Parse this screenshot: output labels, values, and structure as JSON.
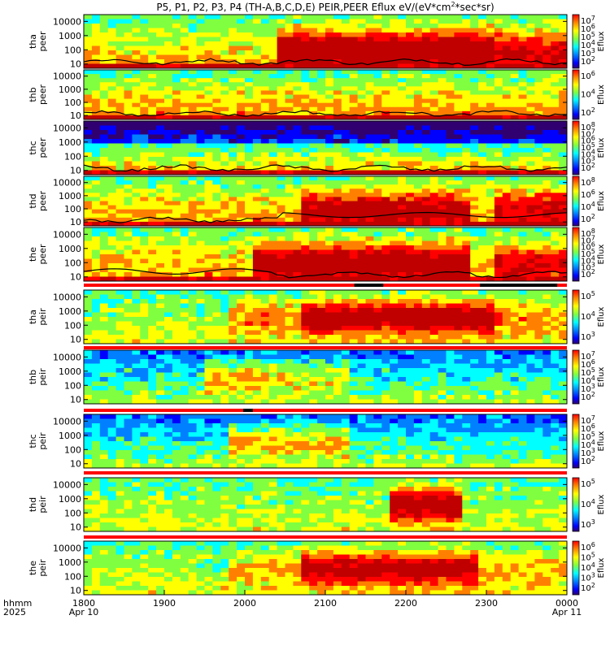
{
  "title": "P5, P1, P2, P3, P4 (TH-A,B,C,D,E) PEIR,PEER Eflux eV/(eV*cm",
  "title_sup": "2",
  "title_tail": "*sec*sr)",
  "bottom_axis": {
    "label_line1": "hhmm",
    "label_line2": "2025",
    "ticks": [
      "1800",
      "1900",
      "2000",
      "2100",
      "2200",
      "2300",
      "0000"
    ],
    "date_start": "Apr 10",
    "date_end": "Apr 11"
  },
  "y_ticks": [
    "10000",
    "1000",
    "100",
    "10"
  ],
  "colorbar_label": "Eflux",
  "chart_data": [
    {
      "type": "heatmap",
      "probe": "tha",
      "species": "peer",
      "ylabel": "tha\npeer",
      "y_scale": "log",
      "ylim": [
        5,
        30000
      ],
      "colorbar_ticks": [
        "10^7",
        "10^6",
        "10^5",
        "10^4",
        "10^3",
        "10^2"
      ],
      "has_overlay_line": true
    },
    {
      "type": "heatmap",
      "probe": "thb",
      "species": "peer",
      "ylabel": "thb\npeer",
      "y_scale": "log",
      "ylim": [
        5,
        30000
      ],
      "colorbar_ticks": [
        "10^6",
        "10^4",
        "10^2"
      ],
      "has_overlay_line": true
    },
    {
      "type": "heatmap",
      "probe": "thc",
      "species": "peer",
      "ylabel": "thc\npeer",
      "y_scale": "log",
      "ylim": [
        5,
        30000
      ],
      "colorbar_ticks": [
        "10^8",
        "10^7",
        "10^6",
        "10^5",
        "10^4",
        "10^3",
        "10^2"
      ],
      "has_overlay_line": true
    },
    {
      "type": "heatmap",
      "probe": "thd",
      "species": "peer",
      "ylabel": "thd\npeer",
      "y_scale": "log",
      "ylim": [
        5,
        30000
      ],
      "colorbar_ticks": [
        "10^8",
        "10^6",
        "10^4",
        "10^2"
      ],
      "has_overlay_line": true
    },
    {
      "type": "heatmap",
      "probe": "the",
      "species": "peer",
      "ylabel": "the\npeer",
      "y_scale": "log",
      "ylim": [
        5,
        30000
      ],
      "colorbar_ticks": [
        "10^8",
        "10^7",
        "10^6",
        "10^5",
        "10^4",
        "10^3",
        "10^2"
      ],
      "has_overlay_line": true
    },
    {
      "type": "heatmap",
      "probe": "tha",
      "species": "peir",
      "ylabel": "tha\npeir",
      "y_scale": "log",
      "ylim": [
        5,
        30000
      ],
      "colorbar_ticks": [
        "10^5",
        "10^4",
        "10^3"
      ],
      "has_overlay_line": false
    },
    {
      "type": "heatmap",
      "probe": "thb",
      "species": "peir",
      "ylabel": "thb\npeir",
      "y_scale": "log",
      "ylim": [
        5,
        30000
      ],
      "colorbar_ticks": [
        "10^7",
        "10^6",
        "10^5",
        "10^4",
        "10^3",
        "10^2"
      ],
      "has_overlay_line": false
    },
    {
      "type": "heatmap",
      "probe": "thc",
      "species": "peir",
      "ylabel": "thc\npeir",
      "y_scale": "log",
      "ylim": [
        5,
        30000
      ],
      "colorbar_ticks": [
        "10^7",
        "10^6",
        "10^5",
        "10^4",
        "10^3",
        "10^2"
      ],
      "has_overlay_line": false
    },
    {
      "type": "heatmap",
      "probe": "thd",
      "species": "peir",
      "ylabel": "thd\npeir",
      "y_scale": "log",
      "ylim": [
        5,
        30000
      ],
      "colorbar_ticks": [
        "10^5",
        "10^4",
        "10^3"
      ],
      "has_overlay_line": false
    },
    {
      "type": "heatmap",
      "probe": "the",
      "species": "peir",
      "ylabel": "the\npeir",
      "y_scale": "log",
      "ylim": [
        5,
        30000
      ],
      "colorbar_ticks": [
        "10^6",
        "10^5",
        "10^4",
        "10^3",
        "10^2"
      ],
      "has_overlay_line": false
    }
  ],
  "colors": {
    "colorbar_stops": [
      "#ff0000",
      "#ff8000",
      "#ffff00",
      "#80ff40",
      "#00ffff",
      "#0080ff",
      "#0000ff",
      "#300070"
    ],
    "mode_bar_red": "#ff0000",
    "mode_bar_black": "#000000",
    "overlay_line": "#000000"
  }
}
